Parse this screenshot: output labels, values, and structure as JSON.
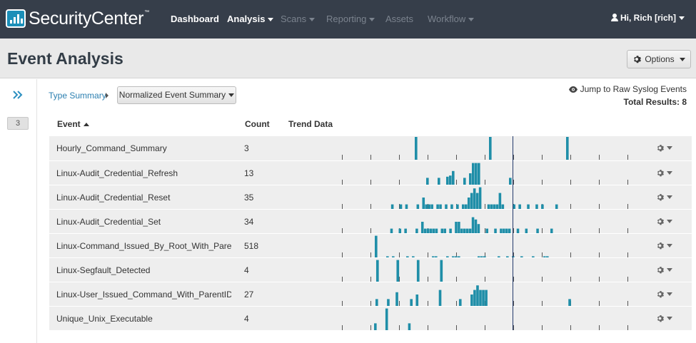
{
  "app": {
    "brand": "SecurityCenter",
    "trademark": "™",
    "nav": [
      {
        "label": "Dashboard",
        "enabled": true,
        "dropdown": false
      },
      {
        "label": "Analysis",
        "enabled": true,
        "dropdown": true
      },
      {
        "label": "Scans",
        "enabled": false,
        "dropdown": true
      },
      {
        "label": "Reporting",
        "enabled": false,
        "dropdown": true
      },
      {
        "label": "Assets",
        "enabled": false,
        "dropdown": false
      },
      {
        "label": "Workflow",
        "enabled": false,
        "dropdown": true
      }
    ],
    "user_label": "Hi, Rich [rich]"
  },
  "page": {
    "title": "Event Analysis",
    "options_label": "Options"
  },
  "rail": {
    "badge": "3"
  },
  "toolbar": {
    "breadcrumb": "Type Summary",
    "view_select": "Normalized Event Summary",
    "jump_link": "Jump to Raw Syslog Events",
    "total_results": "Total Results: 8"
  },
  "table": {
    "columns": {
      "event": "Event",
      "count": "Count",
      "trend": "Trend Data"
    },
    "rows": [
      {
        "event": "Hourly_Command_Summary",
        "count": "3",
        "trend": [
          0,
          0,
          0,
          0,
          0,
          0,
          0,
          0,
          0,
          0,
          0,
          0,
          0,
          0,
          0,
          0,
          0,
          0,
          0,
          0,
          0,
          0,
          0,
          0,
          0,
          0,
          0,
          0,
          0,
          0,
          0,
          0,
          0,
          0,
          0,
          0,
          0,
          0,
          0,
          0,
          0,
          0,
          0,
          1,
          0,
          0,
          0,
          0,
          0,
          0,
          0,
          0,
          0,
          0,
          0,
          0,
          0,
          0,
          0,
          0,
          0,
          0,
          0,
          0,
          0,
          0,
          0,
          0,
          0,
          1,
          0,
          0,
          0,
          0,
          0,
          0,
          0,
          0,
          0,
          0,
          0,
          0,
          0,
          0,
          0,
          0,
          0,
          0,
          0,
          0,
          0,
          0,
          0,
          0,
          0,
          0,
          1,
          0,
          0,
          0,
          0,
          0,
          0,
          0,
          0,
          0,
          0,
          0,
          0,
          0,
          0,
          0,
          0,
          0,
          0,
          0,
          0,
          0,
          0,
          0
        ]
      },
      {
        "event": "Linux-Audit_Credential_Refresh",
        "count": "13",
        "trend": [
          0,
          0,
          0,
          0,
          0,
          0,
          0,
          0,
          0,
          0,
          0,
          0,
          0,
          0,
          0,
          0,
          0,
          0,
          0,
          0,
          0,
          0,
          0,
          0,
          0,
          0,
          0,
          0,
          0,
          0,
          0,
          0,
          0,
          0,
          0,
          0,
          0,
          0,
          0,
          0,
          0,
          0,
          0,
          0,
          0,
          0,
          0,
          0.3,
          0,
          0,
          0,
          0.3,
          0,
          0,
          0.35,
          0.4,
          0.6,
          0,
          0,
          0,
          0.3,
          0,
          0.5,
          0.95,
          0.95,
          0.95,
          0,
          0,
          0,
          0,
          0,
          0,
          0,
          0,
          0,
          0,
          0.3,
          0,
          0,
          0,
          0,
          0,
          0,
          0,
          0,
          0,
          0,
          0,
          0,
          0,
          0,
          0,
          0,
          0,
          0,
          0,
          0,
          0,
          0,
          0,
          0,
          0,
          0,
          0,
          0,
          0,
          0,
          0,
          0,
          0,
          0,
          0,
          0,
          0,
          0,
          0,
          0,
          0,
          0,
          0
        ]
      },
      {
        "event": "Linux-Audit_Credential_Reset",
        "count": "35",
        "trend": [
          0,
          0,
          0,
          0,
          0,
          0,
          0,
          0,
          0,
          0,
          0,
          0,
          0,
          0,
          0,
          0,
          0,
          0,
          0,
          0,
          0,
          0,
          0,
          0,
          0,
          0,
          0,
          0,
          0,
          0,
          0,
          0,
          0,
          0,
          0,
          0.2,
          0,
          0,
          0.2,
          0,
          0.2,
          0,
          0,
          0,
          0.2,
          0,
          0.5,
          0.2,
          0.2,
          0.2,
          0,
          0.2,
          0.2,
          0,
          0.2,
          0,
          0.2,
          0,
          0.2,
          0,
          0.2,
          0.2,
          0.5,
          0.7,
          0.9,
          0.7,
          0.95,
          0,
          0,
          0.2,
          0.2,
          0.2,
          0.2,
          0.7,
          0.2,
          0,
          0,
          0,
          0.2,
          0,
          0.2,
          0,
          0,
          0.2,
          0,
          0,
          0.2,
          0,
          0.2,
          0,
          0,
          0,
          0,
          0.2,
          0,
          0,
          0,
          0,
          0,
          0,
          0,
          0,
          0,
          0,
          0,
          0,
          0,
          0,
          0,
          0,
          0,
          0,
          0,
          0,
          0,
          0,
          0,
          0,
          0,
          0,
          0
        ]
      },
      {
        "event": "Linux-Audit_Credential_Set",
        "count": "34",
        "trend": [
          0,
          0,
          0,
          0,
          0,
          0,
          0,
          0,
          0,
          0,
          0,
          0,
          0,
          0,
          0,
          0,
          0,
          0,
          0,
          0,
          0,
          0,
          0,
          0,
          0,
          0,
          0,
          0,
          0,
          0,
          0,
          0,
          0,
          0,
          0,
          0.2,
          0,
          0,
          0.2,
          0,
          0.2,
          0,
          0,
          0,
          0.2,
          0,
          0.5,
          0.2,
          0.2,
          0.2,
          0.2,
          0.2,
          0,
          0.2,
          0.2,
          0,
          0.2,
          0,
          0.5,
          0.5,
          0.2,
          0.2,
          0.2,
          0.2,
          0.7,
          0.6,
          0.4,
          0,
          0,
          0.2,
          0,
          0,
          0.2,
          0,
          0.2,
          0.2,
          0.2,
          0.2,
          0,
          0,
          0.2,
          0,
          0,
          0.2,
          0,
          0,
          0,
          0.2,
          0,
          0,
          0,
          0,
          0.2,
          0,
          0,
          0,
          0,
          0,
          0,
          0,
          0,
          0,
          0,
          0,
          0,
          0,
          0,
          0,
          0,
          0,
          0,
          0,
          0,
          0,
          0,
          0,
          0,
          0,
          0,
          0,
          0,
          0
        ]
      },
      {
        "event": "Linux-Command_Issued_By_Root_With_ParentID",
        "count": "518",
        "trend": [
          0,
          0,
          0,
          0,
          0,
          0,
          0,
          0,
          0,
          0,
          0,
          0,
          0,
          0,
          0,
          0,
          0,
          0,
          0,
          0,
          0,
          0,
          0,
          0,
          0,
          0,
          0,
          0,
          0,
          0.95,
          0,
          0,
          0,
          0.05,
          0,
          0.05,
          0,
          0,
          0,
          0,
          0.05,
          0,
          0.05,
          0,
          0,
          0,
          0,
          0,
          0,
          0.05,
          0.05,
          0,
          0,
          0,
          0.05,
          0,
          0.05,
          0.05,
          0.05,
          0,
          0,
          0,
          0,
          0,
          0,
          0.05,
          0.05,
          0.05,
          0,
          0,
          0,
          0,
          0.05,
          0,
          0,
          0.05,
          0,
          0.05,
          0,
          0,
          0.05,
          0,
          0,
          0,
          0.05,
          0,
          0,
          0,
          0.05,
          0.05,
          0,
          0,
          0,
          0,
          0,
          0,
          0,
          0,
          0,
          0,
          0,
          0,
          0,
          0,
          0,
          0,
          0,
          0,
          0,
          0,
          0,
          0,
          0,
          0,
          0,
          0,
          0,
          0,
          0,
          0
        ]
      },
      {
        "event": "Linux-Segfault_Detected",
        "count": "4",
        "trend": [
          0,
          0,
          0,
          0,
          0,
          0,
          0,
          0,
          0,
          0,
          0,
          0,
          0,
          0,
          0,
          0,
          0,
          0,
          0,
          0,
          0,
          0,
          0,
          0,
          0,
          0,
          0,
          0,
          0,
          0.95,
          0,
          0,
          0,
          0,
          0,
          0,
          0.95,
          0,
          0,
          0,
          0,
          0,
          0,
          0.95,
          0,
          0,
          0,
          0,
          0,
          0,
          0,
          0.95,
          0,
          0,
          0,
          0,
          0,
          0,
          0,
          0,
          0,
          0,
          0,
          0,
          0,
          0,
          0,
          0,
          0,
          0,
          0,
          0,
          0,
          0,
          0,
          0,
          0,
          0,
          0,
          0,
          0,
          0,
          0,
          0,
          0,
          0,
          0,
          0,
          0,
          0,
          0,
          0,
          0,
          0,
          0,
          0,
          0,
          0,
          0,
          0,
          0,
          0,
          0,
          0,
          0,
          0,
          0,
          0,
          0,
          0,
          0,
          0,
          0,
          0,
          0,
          0,
          0,
          0
        ]
      },
      {
        "event": "Linux-User_Issued_Command_With_ParentID",
        "count": "27",
        "trend": [
          0,
          0,
          0,
          0,
          0,
          0,
          0,
          0,
          0,
          0,
          0,
          0,
          0,
          0,
          0,
          0,
          0,
          0,
          0,
          0,
          0,
          0,
          0,
          0,
          0,
          0,
          0,
          0,
          0,
          0.3,
          0,
          0,
          0,
          0.3,
          0,
          0,
          0.6,
          0,
          0,
          0,
          0,
          0.3,
          0,
          0.5,
          0,
          0,
          0,
          0,
          0,
          0,
          0,
          0.7,
          0,
          0,
          0,
          0,
          0,
          0,
          0.3,
          0,
          0,
          0,
          0.5,
          0.7,
          0.9,
          0.7,
          0.7,
          0.7,
          0,
          0,
          0,
          0,
          0,
          0,
          0,
          0,
          0,
          0,
          0,
          0,
          0,
          0,
          0,
          0,
          0,
          0,
          0,
          0,
          0,
          0,
          0,
          0,
          0,
          0,
          0,
          0,
          0.3,
          0,
          0,
          0,
          0,
          0,
          0,
          0,
          0,
          0,
          0,
          0,
          0,
          0,
          0,
          0,
          0,
          0,
          0,
          0,
          0,
          0,
          0
        ]
      },
      {
        "event": "Unique_Unix_Executable",
        "count": "4",
        "trend": [
          0,
          0,
          0,
          0,
          0,
          0,
          0,
          0,
          0,
          0,
          0,
          0,
          0,
          0,
          0,
          0,
          0,
          0,
          0,
          0,
          0,
          0,
          0,
          0,
          0,
          0,
          0,
          0,
          0,
          0.3,
          0,
          0,
          0,
          0.95,
          0,
          0,
          0,
          0,
          0,
          0,
          0,
          0.3,
          0,
          0,
          0,
          0,
          0,
          0,
          0,
          0,
          0,
          0,
          0,
          0,
          0,
          0,
          0,
          0,
          0,
          0,
          0,
          0,
          0,
          0,
          0,
          0,
          0,
          0,
          0,
          0,
          0,
          0,
          0,
          0,
          0,
          0,
          0,
          0,
          0,
          0,
          0,
          0,
          0,
          0,
          0,
          0,
          0,
          0,
          0,
          0,
          0,
          0,
          0,
          0,
          0,
          0,
          0,
          0,
          0,
          0,
          0,
          0,
          0,
          0,
          0,
          0,
          0,
          0,
          0,
          0,
          0,
          0,
          0,
          0,
          0,
          0,
          0,
          0,
          0,
          0,
          0
        ]
      }
    ]
  },
  "colors": {
    "nav_bg": "#363e4a",
    "bar": "#1f8ea8",
    "link": "#2b7fb0",
    "row_bg": "#eeeeee",
    "now_marker": "#233a6b"
  }
}
